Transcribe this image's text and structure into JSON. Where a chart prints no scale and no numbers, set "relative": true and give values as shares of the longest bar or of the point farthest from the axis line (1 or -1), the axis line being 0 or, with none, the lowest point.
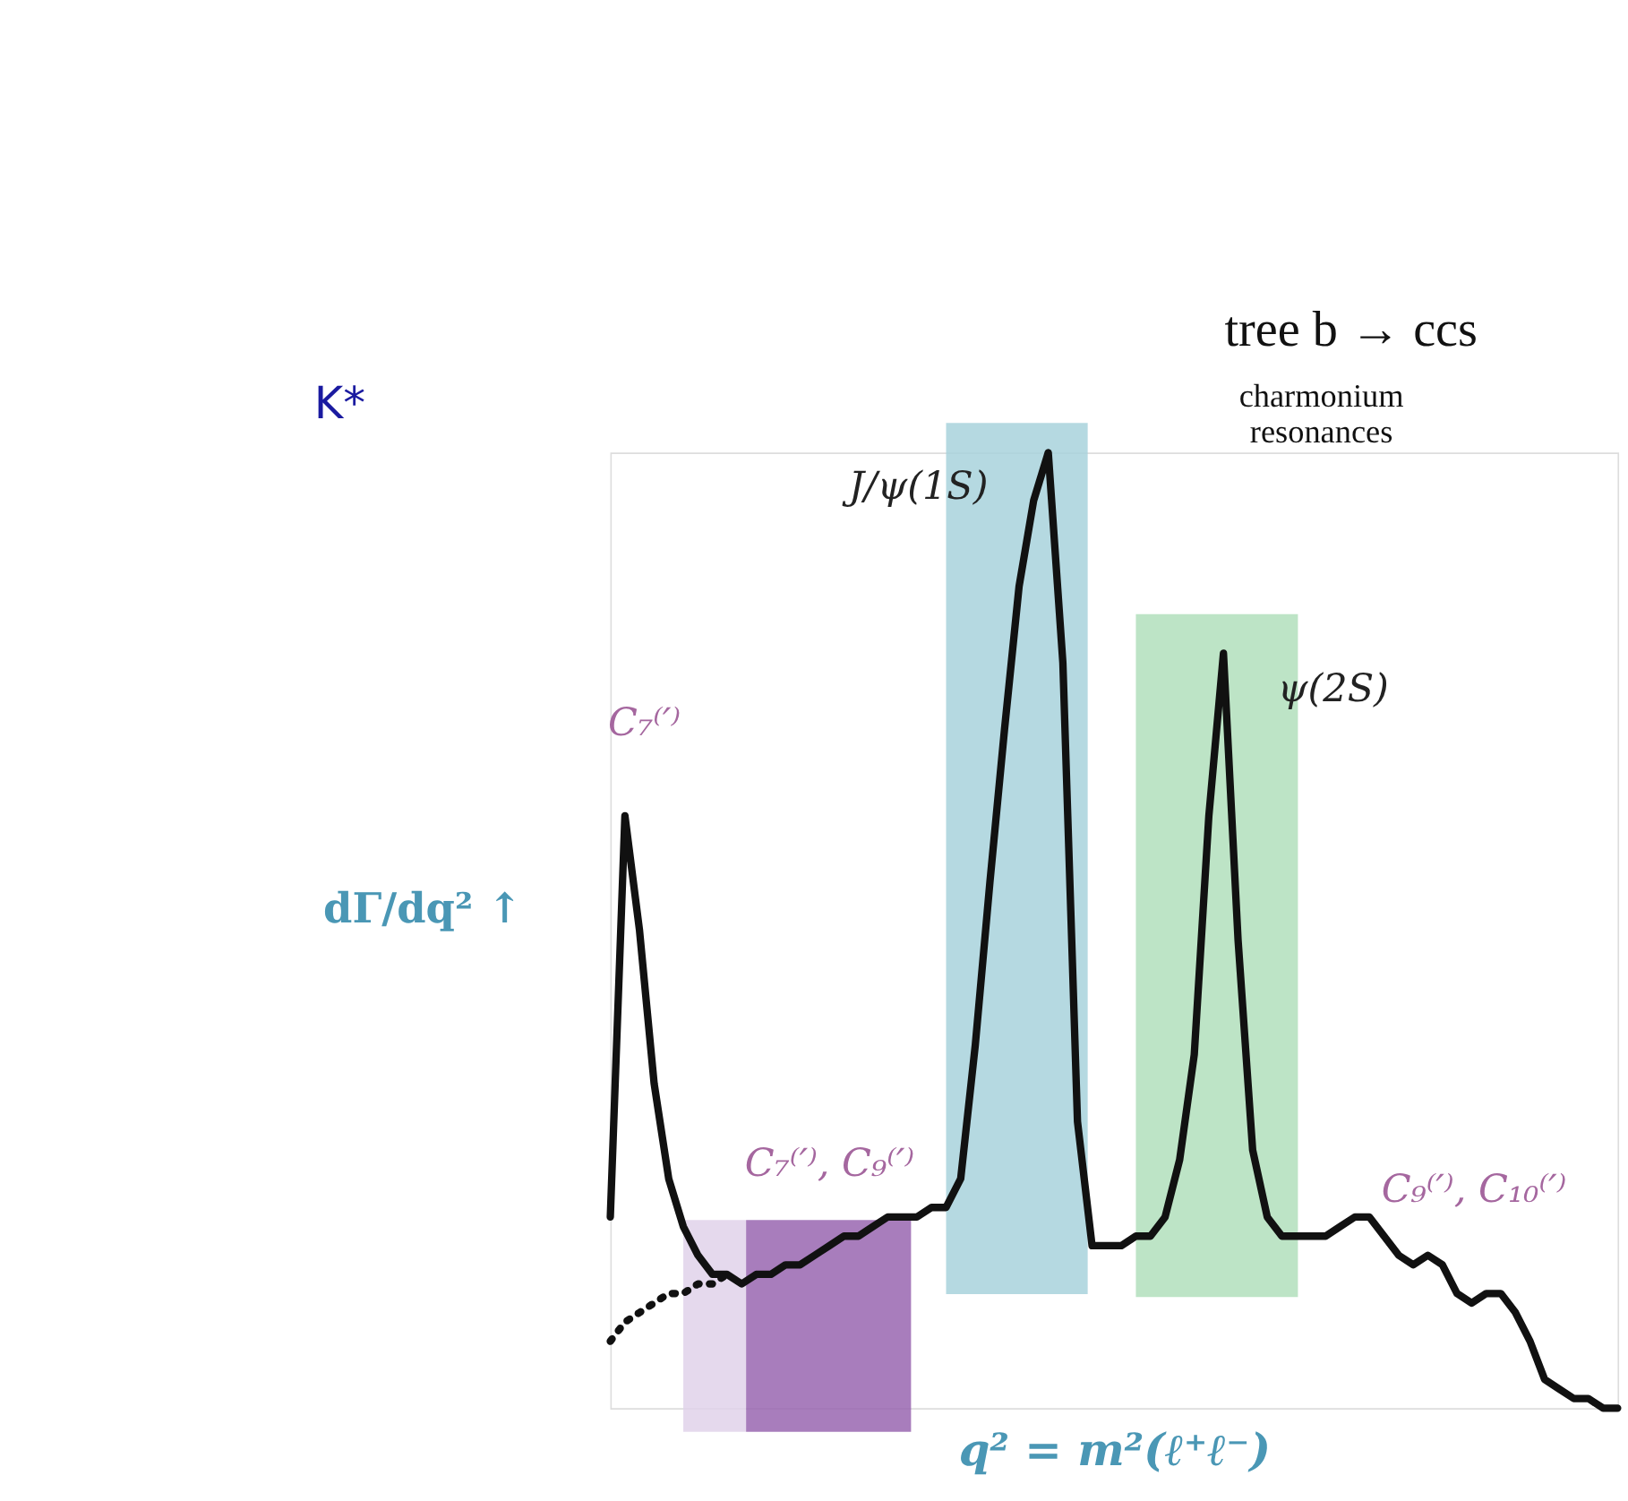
{
  "chart_data": {
    "type": "line",
    "relative": true,
    "title": "K*",
    "xlabel": "q² = m²(ℓ⁺ℓ⁻)",
    "ylabel": "dΓ/dq² ↑",
    "categories": [
      null,
      null,
      null,
      null,
      null,
      null,
      null,
      null,
      null,
      null,
      null,
      null,
      null,
      null,
      null,
      null,
      null,
      null,
      null,
      null,
      null,
      null,
      null,
      null,
      null,
      null,
      null,
      null,
      null,
      null,
      null,
      null,
      null,
      null,
      null,
      null,
      null,
      null,
      null,
      null,
      null,
      null,
      null,
      null,
      null,
      null,
      null,
      null,
      null,
      null,
      null,
      null,
      null,
      null,
      null,
      null,
      null,
      null,
      null,
      null,
      null,
      null,
      null,
      null,
      null,
      null,
      null,
      null,
      null,
      null
    ],
    "grid": false,
    "marker": "none",
    "series": [
      {
        "color": "#111111",
        "line_style": "solid",
        "values": [
          0.2,
          0.62,
          0.5,
          0.34,
          0.24,
          0.19,
          0.16,
          0.14,
          0.14,
          0.13,
          0.14,
          0.14,
          0.15,
          0.15,
          0.16,
          0.17,
          0.18,
          0.18,
          0.19,
          0.2,
          0.2,
          0.2,
          0.21,
          0.21,
          0.24,
          0.38,
          0.55,
          0.71,
          0.86,
          0.95,
          1,
          0.78,
          0.3,
          0.17,
          0.17,
          0.17,
          0.18,
          0.18,
          0.2,
          0.26,
          0.37,
          0.62,
          0.79,
          0.49,
          0.27,
          0.2,
          0.18,
          0.18,
          0.18,
          0.18,
          0.19,
          0.2,
          0.2,
          0.18,
          0.16,
          0.15,
          0.16,
          0.15,
          0.12,
          0.11,
          0.12,
          0.12,
          0.1,
          0.07,
          0.03,
          0.02,
          0.01,
          0.01,
          0.0,
          0
        ]
      },
      {
        "color": "#111111",
        "line_style": "dotted",
        "values": [
          0.07,
          0.09,
          0.1,
          0.11,
          0.12,
          0.12,
          0.13,
          0.13,
          0.14,
          null,
          null,
          null,
          null,
          null,
          null,
          null,
          null,
          null,
          null,
          null,
          null,
          null,
          null,
          null,
          null,
          null,
          null,
          null,
          null,
          null,
          null,
          null,
          null,
          null,
          null,
          null,
          null,
          null,
          null,
          null,
          null,
          null,
          null,
          null,
          null,
          null,
          null,
          null,
          null,
          null,
          null,
          null,
          null,
          null,
          null,
          null,
          null,
          null,
          null,
          null,
          null,
          null,
          null,
          null,
          null,
          null,
          null,
          null,
          null,
          null
        ]
      }
    ],
    "annotations": [
      "J/ψ(1S)",
      "ψ(2S)",
      "C₇⁽′⁾",
      "C₇⁽′⁾, C₉⁽′⁾",
      "C₉⁽′⁾, C₁₀⁽′⁾",
      "tree b → ccs",
      "charmonium resonances"
    ]
  }
}
